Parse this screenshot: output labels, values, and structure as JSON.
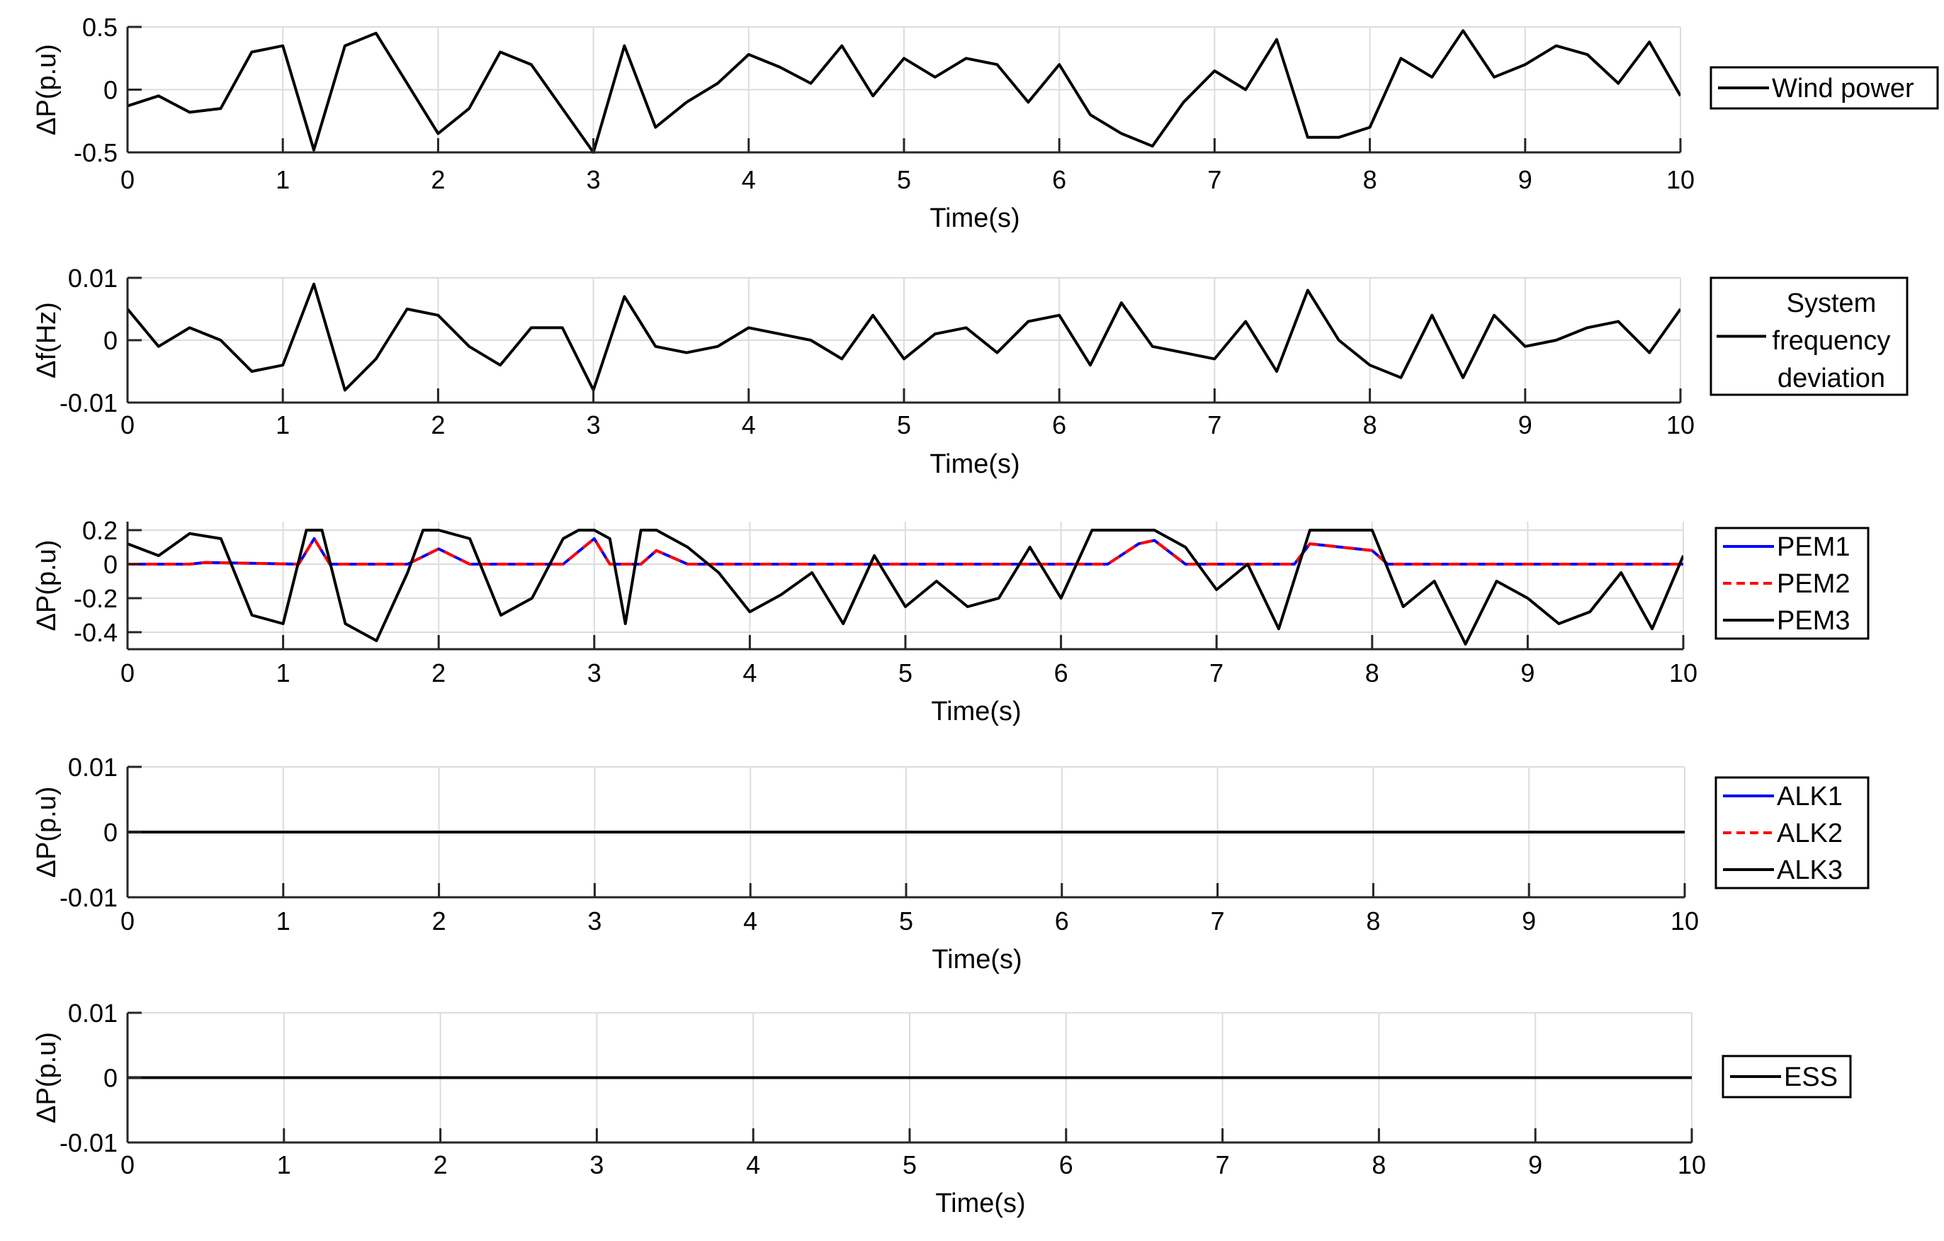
{
  "chart_data": [
    {
      "type": "line",
      "xlabel": "Time(s)",
      "ylabel": "ΔP(p.u)",
      "xlim": [
        0,
        10
      ],
      "ylim": [
        -0.5,
        0.5
      ],
      "xticks": [
        "0",
        "1",
        "2",
        "3",
        "4",
        "5",
        "6",
        "7",
        "8",
        "9",
        "10"
      ],
      "yticks": [
        "0.5",
        "0",
        "-0.5"
      ],
      "grid": true,
      "legend_position": "right",
      "series": [
        {
          "name": "Wind power",
          "color": "#000000",
          "style": "solid",
          "x": [
            0,
            0.2,
            0.4,
            0.6,
            0.8,
            1.0,
            1.2,
            1.4,
            1.6,
            1.8,
            2.0,
            2.2,
            2.4,
            2.6,
            2.8,
            3.0,
            3.2,
            3.4,
            3.6,
            3.8,
            4.0,
            4.2,
            4.4,
            4.6,
            4.8,
            5.0,
            5.2,
            5.4,
            5.6,
            5.8,
            6.0,
            6.2,
            6.4,
            6.6,
            6.8,
            7.0,
            7.2,
            7.4,
            7.6,
            7.8,
            8.0,
            8.2,
            8.4,
            8.6,
            8.8,
            9.0,
            9.2,
            9.4,
            9.6,
            9.8,
            10.0
          ],
          "y": [
            -0.13,
            -0.05,
            -0.18,
            -0.15,
            0.3,
            0.35,
            -0.48,
            0.35,
            0.45,
            0.05,
            -0.35,
            -0.15,
            0.3,
            0.2,
            -0.15,
            -0.5,
            0.35,
            -0.3,
            -0.1,
            0.05,
            0.28,
            0.18,
            0.05,
            0.35,
            -0.05,
            0.25,
            0.1,
            0.25,
            0.2,
            -0.1,
            0.2,
            -0.2,
            -0.35,
            -0.45,
            -0.1,
            0.15,
            0.0,
            0.4,
            -0.38,
            -0.38,
            -0.3,
            0.25,
            0.1,
            0.47,
            0.1,
            0.2,
            0.35,
            0.28,
            0.05,
            0.38,
            -0.05
          ]
        }
      ]
    },
    {
      "type": "line",
      "xlabel": "Time(s)",
      "ylabel": "Δf(Hz)",
      "xlim": [
        0,
        10
      ],
      "ylim": [
        -0.01,
        0.01
      ],
      "xticks": [
        "0",
        "1",
        "2",
        "3",
        "4",
        "5",
        "6",
        "7",
        "8",
        "9",
        "10"
      ],
      "yticks": [
        "0.01",
        "0",
        "-0.01"
      ],
      "grid": true,
      "legend_position": "right",
      "series": [
        {
          "name": "System frequency deviation",
          "color": "#000000",
          "style": "solid",
          "x": [
            0,
            0.2,
            0.4,
            0.6,
            0.8,
            1.0,
            1.2,
            1.4,
            1.6,
            1.8,
            2.0,
            2.2,
            2.4,
            2.6,
            2.8,
            3.0,
            3.2,
            3.4,
            3.6,
            3.8,
            4.0,
            4.2,
            4.4,
            4.6,
            4.8,
            5.0,
            5.2,
            5.4,
            5.6,
            5.8,
            6.0,
            6.2,
            6.4,
            6.6,
            6.8,
            7.0,
            7.2,
            7.4,
            7.6,
            7.8,
            8.0,
            8.2,
            8.4,
            8.6,
            8.8,
            9.0,
            9.2,
            9.4,
            9.6,
            9.8,
            10.0
          ],
          "y": [
            0.005,
            -0.001,
            0.002,
            0.0,
            -0.005,
            -0.004,
            0.009,
            -0.008,
            -0.003,
            0.005,
            0.004,
            -0.001,
            -0.004,
            0.002,
            0.002,
            -0.008,
            0.007,
            -0.001,
            -0.002,
            -0.001,
            0.002,
            0.001,
            0.0,
            -0.003,
            0.004,
            -0.003,
            0.001,
            0.002,
            -0.002,
            0.003,
            0.004,
            -0.004,
            0.006,
            -0.001,
            -0.002,
            -0.003,
            0.003,
            -0.005,
            0.008,
            0.0,
            -0.004,
            -0.006,
            0.004,
            -0.006,
            0.004,
            -0.001,
            0.0,
            0.002,
            0.003,
            -0.002,
            0.005
          ]
        }
      ]
    },
    {
      "type": "line",
      "xlabel": "Time(s)",
      "ylabel": "ΔP(p.u)",
      "xlim": [
        0,
        10
      ],
      "ylim": [
        -0.5,
        0.25
      ],
      "xticks": [
        "0",
        "1",
        "2",
        "3",
        "4",
        "5",
        "6",
        "7",
        "8",
        "9",
        "10"
      ],
      "yticks": [
        "0.2",
        "0",
        "-0.2",
        "-0.4"
      ],
      "grid": true,
      "legend_position": "right",
      "series": [
        {
          "name": "PEM1",
          "color": "#0000ff",
          "style": "solid",
          "x": [
            0,
            0.4,
            0.5,
            1.1,
            1.2,
            1.3,
            1.8,
            2.0,
            2.2,
            2.8,
            3.0,
            3.1,
            3.3,
            3.4,
            3.6,
            6.3,
            6.5,
            6.6,
            6.8,
            7.5,
            7.6,
            7.8,
            8.0,
            8.1,
            10.0
          ],
          "y": [
            0,
            0,
            0.01,
            0,
            0.15,
            0,
            0,
            0.09,
            0,
            0,
            0.15,
            0,
            0,
            0.08,
            0,
            0,
            0.12,
            0.14,
            0,
            0,
            0.12,
            0.1,
            0.08,
            0,
            0
          ]
        },
        {
          "name": "PEM2",
          "color": "#ff0000",
          "style": "dashed",
          "x": [
            0,
            0.4,
            0.5,
            1.1,
            1.2,
            1.3,
            1.8,
            2.0,
            2.2,
            2.8,
            3.0,
            3.1,
            3.3,
            3.4,
            3.6,
            6.3,
            6.5,
            6.6,
            6.8,
            7.5,
            7.6,
            7.8,
            8.0,
            8.1,
            10.0
          ],
          "y": [
            0,
            0,
            0.01,
            0,
            0.15,
            0,
            0,
            0.09,
            0,
            0,
            0.15,
            0,
            0,
            0.08,
            0,
            0,
            0.12,
            0.14,
            0,
            0,
            0.12,
            0.1,
            0.08,
            0,
            0
          ]
        },
        {
          "name": "PEM3",
          "color": "#000000",
          "style": "solid",
          "x": [
            0,
            0.2,
            0.4,
            0.6,
            0.8,
            1.0,
            1.15,
            1.25,
            1.4,
            1.6,
            1.8,
            1.9,
            2.0,
            2.2,
            2.4,
            2.6,
            2.8,
            2.9,
            3.0,
            3.1,
            3.2,
            3.3,
            3.4,
            3.6,
            3.8,
            4.0,
            4.2,
            4.4,
            4.6,
            4.8,
            5.0,
            5.2,
            5.4,
            5.6,
            5.8,
            6.0,
            6.2,
            6.4,
            6.6,
            6.8,
            7.0,
            7.2,
            7.4,
            7.6,
            7.8,
            8.0,
            8.2,
            8.4,
            8.6,
            8.8,
            9.0,
            9.2,
            9.4,
            9.6,
            9.8,
            10.0
          ],
          "y": [
            0.12,
            0.05,
            0.18,
            0.15,
            -0.3,
            -0.35,
            0.2,
            0.2,
            -0.35,
            -0.45,
            -0.05,
            0.2,
            0.2,
            0.15,
            -0.3,
            -0.2,
            0.15,
            0.2,
            0.2,
            0.15,
            -0.35,
            0.2,
            0.2,
            0.1,
            -0.05,
            -0.28,
            -0.18,
            -0.05,
            -0.35,
            0.05,
            -0.25,
            -0.1,
            -0.25,
            -0.2,
            0.1,
            -0.2,
            0.2,
            0.2,
            0.2,
            0.1,
            -0.15,
            0.0,
            -0.38,
            0.2,
            0.2,
            0.2,
            -0.25,
            -0.1,
            -0.47,
            -0.1,
            -0.2,
            -0.35,
            -0.28,
            -0.05,
            -0.38,
            0.05
          ]
        }
      ]
    },
    {
      "type": "line",
      "xlabel": "Time(s)",
      "ylabel": "ΔP(p.u)",
      "xlim": [
        0,
        10
      ],
      "ylim": [
        -0.01,
        0.01
      ],
      "xticks": [
        "0",
        "1",
        "2",
        "3",
        "4",
        "5",
        "6",
        "7",
        "8",
        "9",
        "10"
      ],
      "yticks": [
        "0.01",
        "0",
        "-0.01"
      ],
      "grid": true,
      "legend_position": "right",
      "series": [
        {
          "name": "ALK1",
          "color": "#0000ff",
          "style": "solid",
          "x": [
            0,
            10
          ],
          "y": [
            0,
            0
          ]
        },
        {
          "name": "ALK2",
          "color": "#ff0000",
          "style": "dashed",
          "x": [
            0,
            10
          ],
          "y": [
            0,
            0
          ]
        },
        {
          "name": "ALK3",
          "color": "#000000",
          "style": "solid",
          "x": [
            0,
            10
          ],
          "y": [
            0,
            0
          ]
        }
      ]
    },
    {
      "type": "line",
      "xlabel": "Time(s)",
      "ylabel": "ΔP(p.u)",
      "xlim": [
        0,
        10
      ],
      "ylim": [
        -0.01,
        0.01
      ],
      "xticks": [
        "0",
        "1",
        "2",
        "3",
        "4",
        "5",
        "6",
        "7",
        "8",
        "9",
        "10"
      ],
      "yticks": [
        "0.01",
        "0",
        "-0.01"
      ],
      "grid": true,
      "legend_position": "right",
      "series": [
        {
          "name": "ESS",
          "color": "#000000",
          "style": "solid",
          "x": [
            0,
            10
          ],
          "y": [
            0,
            0
          ]
        }
      ]
    }
  ]
}
